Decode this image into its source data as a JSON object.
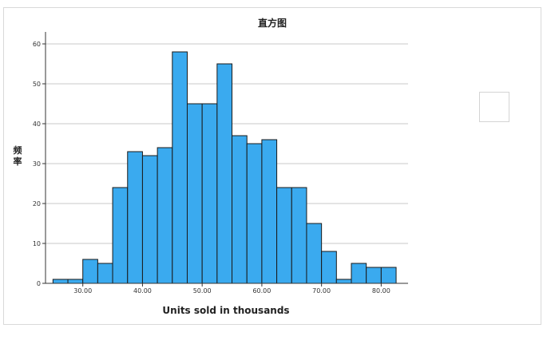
{
  "chart_data": {
    "type": "bar",
    "title": "直方图",
    "xlabel": "Units sold in thousands",
    "ylabel": "频率",
    "bin_width": 2.5,
    "x_start": 25,
    "values": [
      1,
      1,
      6,
      5,
      24,
      33,
      32,
      34,
      58,
      45,
      45,
      55,
      37,
      35,
      36,
      24,
      24,
      15,
      8,
      1,
      5,
      4,
      4
    ],
    "xlim": [
      23.75,
      84.5
    ],
    "ylim": [
      0,
      63
    ],
    "xticks": [
      30,
      40,
      50,
      60,
      70,
      80
    ],
    "xtick_labels": [
      "30.00",
      "40.00",
      "50.00",
      "60.00",
      "70.00",
      "80.00"
    ],
    "yticks": [
      0,
      10,
      20,
      30,
      40,
      50,
      60
    ],
    "ytick_labels": [
      "0",
      "10",
      "20",
      "30",
      "40",
      "50",
      "60"
    ],
    "grid": true,
    "bar_color": "#3aaaef",
    "bar_edge_color": "#1a1a1a"
  }
}
